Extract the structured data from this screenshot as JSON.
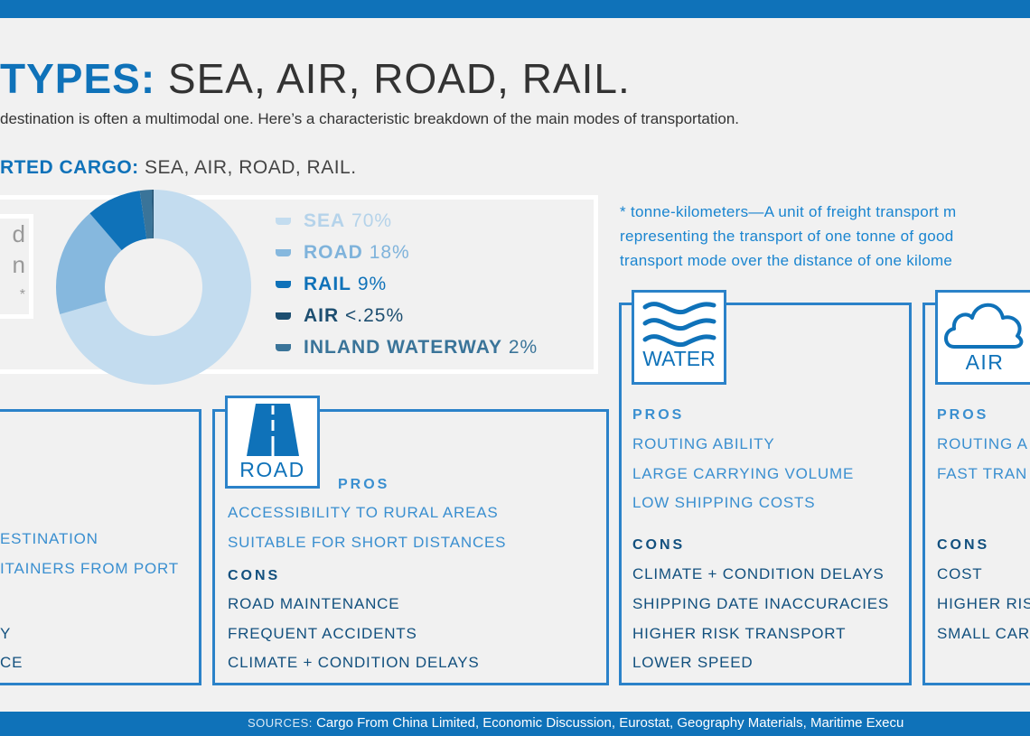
{
  "header": {
    "title_bold": "TYPES:",
    "title_rest": " SEA, AIR, ROAD, RAIL.",
    "subtitle": "destination is often a multimodal one. Here’s a characteristic breakdown of the main modes of transportation."
  },
  "chart_section": {
    "title_bold": "RTED CARGO:",
    "title_rest": " SEA, AIR, ROAD, RAIL.",
    "side_fragments": [
      "d",
      "n",
      "*"
    ]
  },
  "chart_data": {
    "type": "pie",
    "donut": true,
    "categories": [
      "SEA",
      "ROAD",
      "RAIL",
      "AIR",
      "INLAND WATERWAY"
    ],
    "values": [
      70,
      18,
      9,
      0.25,
      2
    ],
    "labels": [
      "70%",
      "18%",
      "9%",
      "<.25%",
      "2%"
    ],
    "colors": [
      "#c3dcef",
      "#86b8de",
      "#0f72b9",
      "#1d4e70",
      "#3a7499"
    ],
    "legend": "right"
  },
  "note": {
    "lines": [
      "* tonne-kilometers—A unit of freight transport m",
      "representing the transport of one tonne of good",
      "transport mode over the distance of one kilome"
    ]
  },
  "cards": {
    "left": {
      "fragments_pros": [
        "ESTINATION",
        "ITAINERS FROM PORT"
      ],
      "fragments_cons": [
        "Y",
        "CE"
      ]
    },
    "road": {
      "label": "ROAD",
      "pros_label": "PROS",
      "pros": [
        "ACCESSIBILITY TO RURAL AREAS",
        "SUITABLE FOR SHORT DISTANCES"
      ],
      "cons_label": "CONS",
      "cons": [
        "ROAD MAINTENANCE",
        "FREQUENT ACCIDENTS",
        "CLIMATE + CONDITION DELAYS"
      ]
    },
    "water": {
      "label": "WATER",
      "pros_label": "PROS",
      "pros": [
        "ROUTING ABILITY",
        "LARGE CARRYING VOLUME",
        "LOW SHIPPING COSTS"
      ],
      "cons_label": "CONS",
      "cons": [
        "CLIMATE + CONDITION DELAYS",
        "SHIPPING DATE INACCURACIES",
        "HIGHER RISK TRANSPORT",
        "LOWER SPEED"
      ]
    },
    "air": {
      "label": "AIR",
      "pros_label": "PROS",
      "pros": [
        "ROUTING A",
        "FAST TRAN"
      ],
      "cons_label": "CONS",
      "cons": [
        "COST",
        "HIGHER RIS",
        "SMALL CAR"
      ]
    }
  },
  "footer": {
    "label": "SOURCES:",
    "text": " Cargo From China Limited, Economic Discussion, Eurostat, Geography Materials, Maritime Execu"
  },
  "colors": {
    "accent": "#0f72b9",
    "background": "#f1f1f1"
  }
}
